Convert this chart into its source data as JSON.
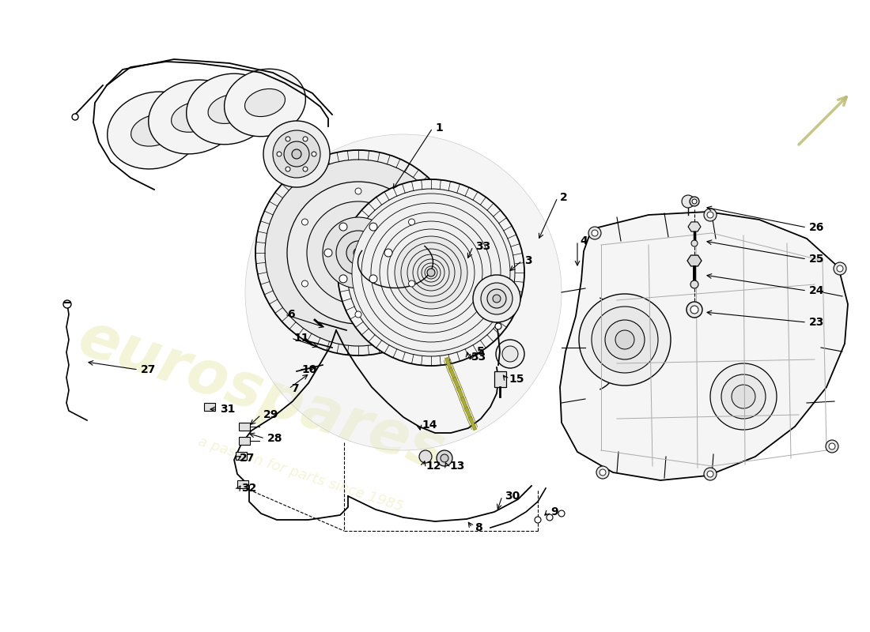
{
  "bg_color": "#ffffff",
  "line_color": "#000000",
  "watermark_color": "#f0f0c8",
  "watermark_alpha": 0.7,
  "gray_light": "#e8e8e8",
  "gray_mid": "#d0d0d0",
  "gray_dark": "#b0b0b0",
  "arrow_gray": "#c8c870",
  "part_label_size": 10,
  "watermark_size": 55,
  "sub_watermark_size": 13,
  "annotations": [
    [
      "1",
      547,
      162
    ],
    [
      "2",
      705,
      250
    ],
    [
      "3",
      660,
      330
    ],
    [
      "4",
      730,
      305
    ],
    [
      "5",
      600,
      445
    ],
    [
      "6",
      360,
      398
    ],
    [
      "7",
      365,
      492
    ],
    [
      "8",
      597,
      668
    ],
    [
      "9",
      693,
      648
    ],
    [
      "10",
      378,
      468
    ],
    [
      "11",
      368,
      428
    ],
    [
      "12",
      535,
      590
    ],
    [
      "13",
      565,
      590
    ],
    [
      "14",
      530,
      538
    ],
    [
      "15",
      640,
      480
    ],
    [
      "23",
      1020,
      408
    ],
    [
      "24",
      1020,
      368
    ],
    [
      "25",
      1020,
      328
    ],
    [
      "26",
      1020,
      288
    ],
    [
      "27",
      175,
      468
    ],
    [
      "27",
      300,
      580
    ],
    [
      "28",
      335,
      555
    ],
    [
      "29",
      330,
      525
    ],
    [
      "30",
      635,
      628
    ],
    [
      "31",
      275,
      518
    ],
    [
      "32",
      302,
      618
    ],
    [
      "33",
      598,
      312
    ],
    [
      "33",
      592,
      452
    ]
  ]
}
